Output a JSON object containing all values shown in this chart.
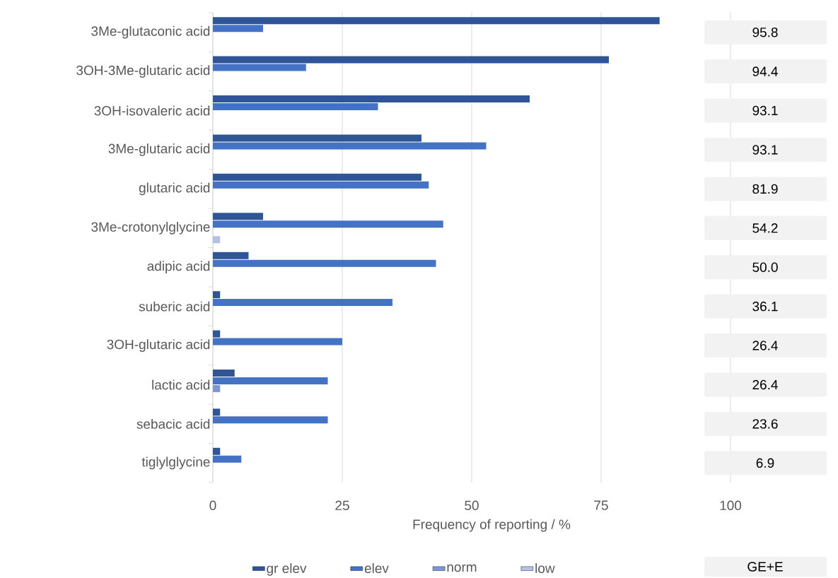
{
  "chart_data": {
    "type": "bar",
    "orientation": "horizontal",
    "xlabel": "Frequency of reporting / %",
    "categories": [
      "3Me-glutaconic acid",
      "3OH-3Me-glutaric acid",
      "3OH-isovaleric acid",
      "3Me-glutaric acid",
      "glutaric acid",
      "3Me-crotonylglycine",
      "adipic acid",
      "suberic acid",
      "3OH-glutaric acid",
      "lactic acid",
      "sebacic acid",
      "tiglylglycine"
    ],
    "series": [
      {
        "name": "gr elev",
        "color": "#2f5597",
        "values": [
          86.3,
          76.5,
          61.2,
          40.3,
          40.3,
          9.7,
          6.9,
          1.4,
          1.4,
          4.2,
          1.4,
          1.4
        ]
      },
      {
        "name": "elev",
        "color": "#4472c4",
        "values": [
          9.7,
          18.0,
          31.9,
          52.8,
          41.7,
          44.5,
          43.1,
          34.7,
          25.0,
          22.2,
          22.2,
          5.5
        ]
      },
      {
        "name": "norm",
        "color": "#7f96d6",
        "values": [
          0,
          0,
          0,
          0,
          0,
          0,
          0,
          0,
          0,
          1.4,
          0,
          0
        ]
      },
      {
        "name": "low",
        "color": "#b4c0e4",
        "values": [
          0,
          0,
          0,
          0,
          0,
          1.4,
          0,
          0,
          0,
          0,
          0,
          0
        ]
      }
    ],
    "annotations": [
      "95.8",
      "94.4",
      "93.1",
      "93.1",
      "81.9",
      "54.2",
      "50.0",
      "36.1",
      "26.4",
      "26.4",
      "23.6",
      "6.9",
      "GE+E"
    ],
    "xlim": [
      0,
      100
    ],
    "xticks": [
      0,
      25,
      50,
      75,
      100
    ],
    "grid": "x",
    "legend": "bottom"
  }
}
